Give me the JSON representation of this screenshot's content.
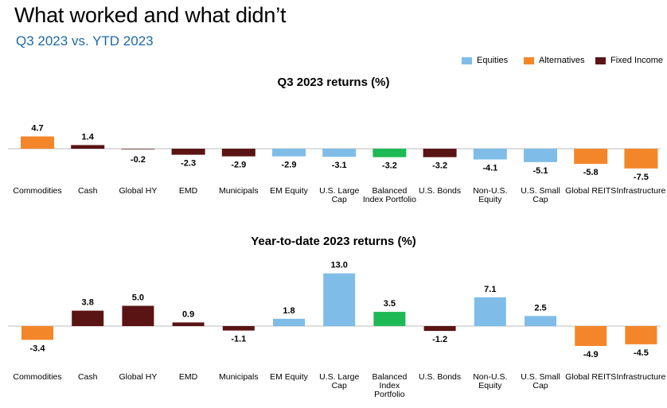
{
  "header": {
    "title": "What worked and what didn’t",
    "subtitle": "Q3 2023 vs. YTD 2023"
  },
  "legend": [
    {
      "name": "Equities",
      "color": "#7fbde8"
    },
    {
      "name": "Alternatives",
      "color": "#f4862a"
    },
    {
      "name": "Fixed Income",
      "color": "#5a1414"
    }
  ],
  "colors": {
    "Equities": "#7fbde8",
    "Alternatives": "#f4862a",
    "Fixed Income": "#5a1414",
    "Balanced": "#1db954"
  },
  "chart_data": [
    {
      "type": "bar",
      "title": "Q3 2023 returns (%)",
      "categories": [
        "Commodities",
        "Cash",
        "Global HY",
        "EMD",
        "Municipals",
        "EM Equity",
        "U.S. Large Cap",
        "Balanced Index Portfolio",
        "U.S. Bonds",
        "Non-U.S. Equity",
        "U.S. Small Cap",
        "Global REITS",
        "Infrastructure"
      ],
      "category_lines": [
        [
          "Commodities"
        ],
        [
          "Cash"
        ],
        [
          "Global HY"
        ],
        [
          "EMD"
        ],
        [
          "Municipals"
        ],
        [
          "EM Equity"
        ],
        [
          "U.S. Large",
          "Cap"
        ],
        [
          "Balanced",
          "Index Portfolio"
        ],
        [
          "U.S. Bonds"
        ],
        [
          "Non-U.S.",
          "Equity"
        ],
        [
          "U.S. Small",
          "Cap"
        ],
        [
          "Global REITS"
        ],
        [
          "Infrastructure"
        ]
      ],
      "values": [
        4.7,
        1.4,
        -0.2,
        -2.3,
        -2.9,
        -2.9,
        -3.1,
        -3.2,
        -3.2,
        -4.1,
        -5.1,
        -5.8,
        -7.5
      ],
      "labels": [
        "4.7",
        "1.4",
        "-0.2",
        "-2.3",
        "-2.9",
        "-2.9",
        "-3.1",
        "-3.2",
        "-3.2",
        "-4.1",
        "-5.1",
        "-5.8",
        "-7.5"
      ],
      "groups": [
        "Alternatives",
        "Fixed Income",
        "Fixed Income",
        "Fixed Income",
        "Fixed Income",
        "Equities",
        "Equities",
        "Balanced",
        "Fixed Income",
        "Equities",
        "Equities",
        "Alternatives",
        "Alternatives"
      ],
      "ylim": [
        -8,
        5
      ]
    },
    {
      "type": "bar",
      "title": "Year-to-date 2023 returns (%)",
      "categories": [
        "Commodities",
        "Cash",
        "Global HY",
        "EMD",
        "Municipals",
        "EM Equity",
        "U.S. Large Cap",
        "Balanced Index Portfolio",
        "U.S. Bonds",
        "Non-U.S. Equity",
        "U.S. Small Cap",
        "Global REITS",
        "Infrastructure"
      ],
      "category_lines": [
        [
          "Commodities"
        ],
        [
          "Cash"
        ],
        [
          "Global HY"
        ],
        [
          "EMD"
        ],
        [
          "Municipals"
        ],
        [
          "EM Equity"
        ],
        [
          "U.S. Large",
          "Cap"
        ],
        [
          "Balanced",
          "Index",
          "Portfolio"
        ],
        [
          "U.S. Bonds"
        ],
        [
          "Non-U.S.",
          "Equity"
        ],
        [
          "U.S. Small",
          "Cap"
        ],
        [
          "Global REITS"
        ],
        [
          "Infrastructure"
        ]
      ],
      "values": [
        -3.4,
        3.8,
        5.0,
        0.9,
        -1.1,
        1.8,
        13.0,
        3.5,
        -1.2,
        7.1,
        2.5,
        -4.9,
        -4.5
      ],
      "labels": [
        "-3.4",
        "3.8",
        "5.0",
        "0.9",
        "-1.1",
        "1.8",
        "13.0",
        "3.5",
        "-1.2",
        "7.1",
        "2.5",
        "-4.9",
        "-4.5"
      ],
      "groups": [
        "Alternatives",
        "Fixed Income",
        "Fixed Income",
        "Fixed Income",
        "Fixed Income",
        "Equities",
        "Equities",
        "Balanced",
        "Fixed Income",
        "Equities",
        "Equities",
        "Alternatives",
        "Alternatives"
      ],
      "ylim": [
        -5,
        14
      ]
    }
  ]
}
